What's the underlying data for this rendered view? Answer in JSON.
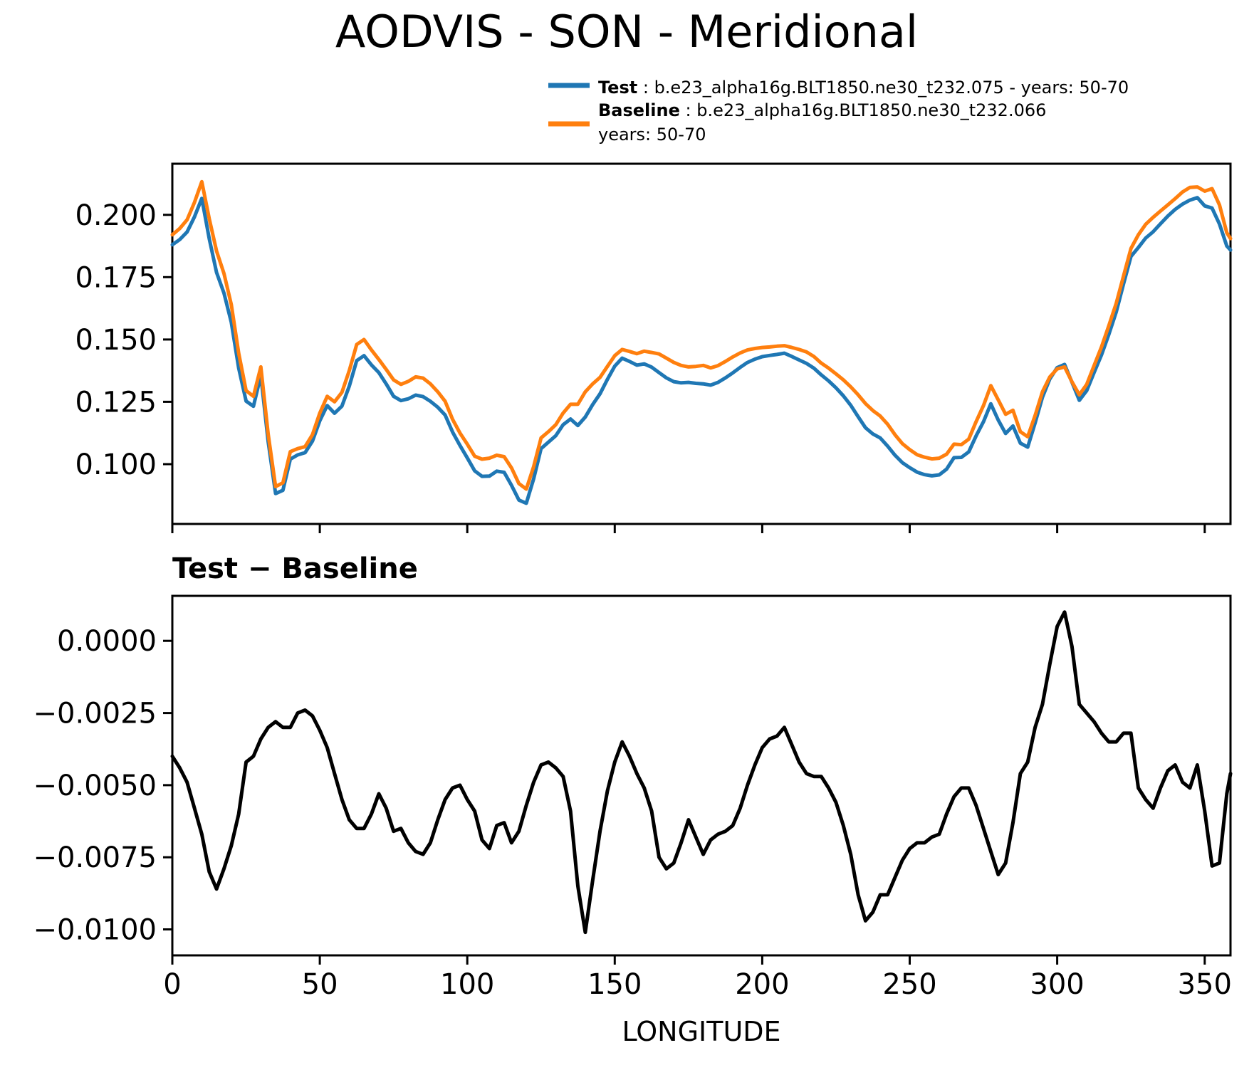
{
  "title": "AODVIS - SON - Meridional",
  "legend": {
    "test_name": "Test",
    "test_rest": " : b.e23_alpha16g.BLT1850.ne30_t232.075 - years: 50-70",
    "baseline_name": "Baseline",
    "baseline_rest": " : b.e23_alpha16g.BLT1850.ne30_t232.066",
    "baseline_years": "years: 50-70"
  },
  "colors": {
    "test": "#1f77b4",
    "baseline": "#ff7f0e",
    "diff": "#000000",
    "axis": "#000000"
  },
  "chart_data": [
    {
      "type": "line",
      "panel": "main",
      "xlabel": "",
      "ylabel": "",
      "xlim": [
        0,
        358.75
      ],
      "ylim": [
        0.076,
        0.2205
      ],
      "grid": false,
      "legend_position": "upper right, above axes, no frame",
      "yticks": [
        {
          "v": 0.2,
          "label": "0.200"
        },
        {
          "v": 0.175,
          "label": "0.175"
        },
        {
          "v": 0.15,
          "label": "0.150"
        },
        {
          "v": 0.125,
          "label": "0.125"
        },
        {
          "v": 0.1,
          "label": "0.100"
        }
      ],
      "xticks": [
        {
          "v": 0,
          "label": ""
        },
        {
          "v": 50,
          "label": ""
        },
        {
          "v": 100,
          "label": ""
        },
        {
          "v": 150,
          "label": ""
        },
        {
          "v": 200,
          "label": ""
        },
        {
          "v": 250,
          "label": ""
        },
        {
          "v": 300,
          "label": ""
        },
        {
          "v": 350,
          "label": ""
        }
      ],
      "x": [
        0,
        2.5,
        5,
        7.5,
        10,
        12.5,
        15,
        17.5,
        20,
        22.5,
        25,
        27.5,
        30,
        32.5,
        35,
        37.5,
        40,
        42.5,
        45,
        47.5,
        50,
        52.5,
        55,
        57.5,
        60,
        62.5,
        65,
        67.5,
        70,
        72.5,
        75,
        77.5,
        80,
        82.5,
        85,
        87.5,
        90,
        92.5,
        95,
        97.5,
        100,
        102.5,
        105,
        107.5,
        110,
        112.5,
        115,
        117.5,
        120,
        122.5,
        125,
        127.5,
        130,
        132.5,
        135,
        137.5,
        140,
        142.5,
        145,
        147.5,
        150,
        152.5,
        155,
        157.5,
        160,
        162.5,
        165,
        167.5,
        170,
        172.5,
        175,
        177.5,
        180,
        182.5,
        185,
        187.5,
        190,
        192.5,
        195,
        197.5,
        200,
        202.5,
        205,
        207.5,
        210,
        212.5,
        215,
        217.5,
        220,
        222.5,
        225,
        227.5,
        230,
        232.5,
        235,
        237.5,
        240,
        242.5,
        245,
        247.5,
        250,
        252.5,
        255,
        257.5,
        260,
        262.5,
        265,
        267.5,
        270,
        272.5,
        275,
        277.5,
        280,
        282.5,
        285,
        287.5,
        290,
        292.5,
        295,
        297.5,
        300,
        302.5,
        305,
        307.5,
        310,
        312.5,
        315,
        317.5,
        320,
        322.5,
        325,
        327.5,
        330,
        332.5,
        335,
        337.5,
        340,
        342.5,
        345,
        347.5,
        350,
        352.5,
        355,
        357.5,
        358.75
      ],
      "series": [
        {
          "name": "Test",
          "color": "#1f77b4",
          "values": [
            0.188,
            0.1901,
            0.1931,
            0.1992,
            0.2066,
            0.1905,
            0.1769,
            0.1686,
            0.1569,
            0.1385,
            0.1253,
            0.1232,
            0.1356,
            0.109,
            0.0882,
            0.0895,
            0.102,
            0.1037,
            0.1046,
            0.1092,
            0.1174,
            0.1235,
            0.1204,
            0.1233,
            0.1313,
            0.1415,
            0.1435,
            0.1398,
            0.1367,
            0.1322,
            0.1272,
            0.1255,
            0.1262,
            0.1277,
            0.1271,
            0.1252,
            0.1228,
            0.1197,
            0.1129,
            0.1075,
            0.1025,
            0.0973,
            0.0951,
            0.0952,
            0.0972,
            0.0967,
            0.0915,
            0.0856,
            0.0843,
            0.0941,
            0.1062,
            0.1088,
            0.1114,
            0.1158,
            0.1181,
            0.1155,
            0.1189,
            0.1239,
            0.1282,
            0.134,
            0.1393,
            0.1425,
            0.1412,
            0.1397,
            0.1402,
            0.1389,
            0.1367,
            0.1346,
            0.1331,
            0.1326,
            0.1328,
            0.1324,
            0.1322,
            0.1317,
            0.1328,
            0.1346,
            0.1366,
            0.1388,
            0.1408,
            0.1421,
            0.1431,
            0.1436,
            0.144,
            0.1445,
            0.1432,
            0.1418,
            0.1404,
            0.1385,
            0.1358,
            0.1334,
            0.1306,
            0.1274,
            0.1236,
            0.119,
            0.1146,
            0.1121,
            0.1105,
            0.1072,
            0.1036,
            0.1006,
            0.0986,
            0.0968,
            0.0958,
            0.0953,
            0.0957,
            0.098,
            0.1026,
            0.1027,
            0.1049,
            0.1113,
            0.117,
            0.1242,
            0.1177,
            0.1123,
            0.1153,
            0.1084,
            0.1068,
            0.1165,
            0.1268,
            0.1342,
            0.1387,
            0.14,
            0.1328,
            0.1256,
            0.1295,
            0.1367,
            0.1438,
            0.152,
            0.161,
            0.1723,
            0.1833,
            0.1869,
            0.1907,
            0.1932,
            0.1964,
            0.1995,
            0.2022,
            0.2043,
            0.2059,
            0.2069,
            0.2036,
            0.2027,
            0.1963,
            0.1875,
            0.1859
          ]
        },
        {
          "name": "Baseline",
          "color": "#ff7f0e",
          "values": [
            0.192,
            0.1945,
            0.198,
            0.205,
            0.2133,
            0.1985,
            0.1855,
            0.1765,
            0.164,
            0.1445,
            0.1295,
            0.1272,
            0.139,
            0.112,
            0.091,
            0.0925,
            0.105,
            0.1062,
            0.107,
            0.1118,
            0.1205,
            0.1272,
            0.125,
            0.1288,
            0.1375,
            0.148,
            0.15,
            0.1458,
            0.142,
            0.138,
            0.1338,
            0.132,
            0.1332,
            0.135,
            0.1345,
            0.1322,
            0.129,
            0.1252,
            0.118,
            0.1125,
            0.108,
            0.1032,
            0.102,
            0.1024,
            0.1036,
            0.103,
            0.0985,
            0.0922,
            0.09,
            0.099,
            0.1105,
            0.113,
            0.1158,
            0.1205,
            0.124,
            0.124,
            0.129,
            0.1322,
            0.1348,
            0.1392,
            0.1435,
            0.146,
            0.1452,
            0.1443,
            0.1453,
            0.1448,
            0.1442,
            0.1425,
            0.1408,
            0.1396,
            0.139,
            0.1392,
            0.1396,
            0.1386,
            0.1395,
            0.1412,
            0.143,
            0.1446,
            0.1458,
            0.1464,
            0.1468,
            0.147,
            0.1473,
            0.1475,
            0.1468,
            0.146,
            0.145,
            0.1432,
            0.1405,
            0.1385,
            0.1362,
            0.1338,
            0.131,
            0.1278,
            0.1243,
            0.1215,
            0.1193,
            0.116,
            0.1118,
            0.1082,
            0.1058,
            0.1038,
            0.1028,
            0.1021,
            0.1024,
            0.104,
            0.108,
            0.1078,
            0.11,
            0.117,
            0.1235,
            0.1315,
            0.1258,
            0.12,
            0.1216,
            0.113,
            0.111,
            0.1195,
            0.129,
            0.135,
            0.1382,
            0.139,
            0.133,
            0.1278,
            0.132,
            0.1395,
            0.147,
            0.1555,
            0.1645,
            0.1755,
            0.1865,
            0.192,
            0.1962,
            0.199,
            0.2015,
            0.204,
            0.2065,
            0.2092,
            0.211,
            0.2112,
            0.2095,
            0.2105,
            0.204,
            0.1928,
            0.1905
          ]
        }
      ]
    },
    {
      "type": "line",
      "panel": "diff",
      "title": "Test − Baseline",
      "xlabel": "LONGITUDE",
      "xlim": [
        0,
        358.75
      ],
      "ylim": [
        -0.0109,
        0.00156
      ],
      "grid": false,
      "yticks": [
        {
          "v": 0.0,
          "label": "0.0000"
        },
        {
          "v": -0.0025,
          "label": "−0.0025"
        },
        {
          "v": -0.005,
          "label": "−0.0050"
        },
        {
          "v": -0.0075,
          "label": "−0.0075"
        },
        {
          "v": -0.01,
          "label": "−0.0100"
        }
      ],
      "xticks": [
        {
          "v": 0,
          "label": "0"
        },
        {
          "v": 50,
          "label": "50"
        },
        {
          "v": 100,
          "label": "100"
        },
        {
          "v": 150,
          "label": "150"
        },
        {
          "v": 200,
          "label": "200"
        },
        {
          "v": 250,
          "label": "250"
        },
        {
          "v": 300,
          "label": "300"
        },
        {
          "v": 350,
          "label": "350"
        }
      ],
      "x": [
        0,
        2.5,
        5,
        7.5,
        10,
        12.5,
        15,
        17.5,
        20,
        22.5,
        25,
        27.5,
        30,
        32.5,
        35,
        37.5,
        40,
        42.5,
        45,
        47.5,
        50,
        52.5,
        55,
        57.5,
        60,
        62.5,
        65,
        67.5,
        70,
        72.5,
        75,
        77.5,
        80,
        82.5,
        85,
        87.5,
        90,
        92.5,
        95,
        97.5,
        100,
        102.5,
        105,
        107.5,
        110,
        112.5,
        115,
        117.5,
        120,
        122.5,
        125,
        127.5,
        130,
        132.5,
        135,
        137.5,
        140,
        142.5,
        145,
        147.5,
        150,
        152.5,
        155,
        157.5,
        160,
        162.5,
        165,
        167.5,
        170,
        172.5,
        175,
        177.5,
        180,
        182.5,
        185,
        187.5,
        190,
        192.5,
        195,
        197.5,
        200,
        202.5,
        205,
        207.5,
        210,
        212.5,
        215,
        217.5,
        220,
        222.5,
        225,
        227.5,
        230,
        232.5,
        235,
        237.5,
        240,
        242.5,
        245,
        247.5,
        250,
        252.5,
        255,
        257.5,
        260,
        262.5,
        265,
        267.5,
        270,
        272.5,
        275,
        277.5,
        280,
        282.5,
        285,
        287.5,
        290,
        292.5,
        295,
        297.5,
        300,
        302.5,
        305,
        307.5,
        310,
        312.5,
        315,
        317.5,
        320,
        322.5,
        325,
        327.5,
        330,
        332.5,
        335,
        337.5,
        340,
        342.5,
        345,
        347.5,
        350,
        352.5,
        355,
        357.5,
        358.75
      ],
      "series": [
        {
          "name": "Test − Baseline",
          "color": "#000000",
          "values": [
            -0.004,
            -0.0044,
            -0.0049,
            -0.0058,
            -0.0067,
            -0.008,
            -0.0086,
            -0.0079,
            -0.0071,
            -0.006,
            -0.0042,
            -0.004,
            -0.0034,
            -0.003,
            -0.0028,
            -0.003,
            -0.003,
            -0.0025,
            -0.0024,
            -0.0026,
            -0.0031,
            -0.0037,
            -0.0046,
            -0.0055,
            -0.0062,
            -0.0065,
            -0.0065,
            -0.006,
            -0.0053,
            -0.0058,
            -0.0066,
            -0.0065,
            -0.007,
            -0.0073,
            -0.0074,
            -0.007,
            -0.0062,
            -0.0055,
            -0.0051,
            -0.005,
            -0.0055,
            -0.0059,
            -0.0069,
            -0.0072,
            -0.0064,
            -0.0063,
            -0.007,
            -0.0066,
            -0.0057,
            -0.0049,
            -0.0043,
            -0.0042,
            -0.0044,
            -0.0047,
            -0.0059,
            -0.0085,
            -0.0101,
            -0.0083,
            -0.0066,
            -0.0052,
            -0.0042,
            -0.0035,
            -0.004,
            -0.0046,
            -0.0051,
            -0.0059,
            -0.0075,
            -0.0079,
            -0.0077,
            -0.007,
            -0.0062,
            -0.0068,
            -0.0074,
            -0.0069,
            -0.0067,
            -0.0066,
            -0.0064,
            -0.0058,
            -0.005,
            -0.0043,
            -0.0037,
            -0.0034,
            -0.0033,
            -0.003,
            -0.0036,
            -0.0042,
            -0.0046,
            -0.0047,
            -0.0047,
            -0.0051,
            -0.0056,
            -0.0064,
            -0.0074,
            -0.0088,
            -0.0097,
            -0.0094,
            -0.0088,
            -0.0088,
            -0.0082,
            -0.0076,
            -0.0072,
            -0.007,
            -0.007,
            -0.0068,
            -0.0067,
            -0.006,
            -0.0054,
            -0.0051,
            -0.0051,
            -0.0057,
            -0.0065,
            -0.0073,
            -0.0081,
            -0.0077,
            -0.0063,
            -0.0046,
            -0.0042,
            -0.003,
            -0.0022,
            -0.0008,
            0.0005,
            0.001,
            -0.0002,
            -0.0022,
            -0.0025,
            -0.0028,
            -0.0032,
            -0.0035,
            -0.0035,
            -0.0032,
            -0.0032,
            -0.0051,
            -0.0055,
            -0.0058,
            -0.0051,
            -0.0045,
            -0.0043,
            -0.0049,
            -0.0051,
            -0.0043,
            -0.0059,
            -0.0078,
            -0.0077,
            -0.0053,
            -0.0046
          ]
        }
      ]
    }
  ]
}
